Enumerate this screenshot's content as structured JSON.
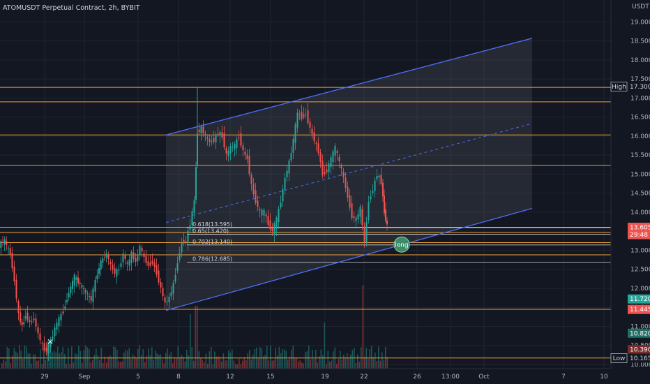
{
  "title": "ATOMUSDT Perpetual Contract, 2h, BYBIT",
  "colors": {
    "background": "#131722",
    "grid": "#1f2430",
    "orange": "#f0a234",
    "blue": "#4f6ef7",
    "candle_up": "#26a69a",
    "candle_down": "#ef5350",
    "fib_line": "#ffffff",
    "long_marker": "#3d8b6a"
  },
  "chart_data": {
    "type": "candlestick",
    "title": "ATOMUSDT Perpetual Contract, 2h, BYBIT",
    "yunit": "USDT",
    "ylim": [
      10.0,
      19.3
    ],
    "y_ticks": [
      "19.000",
      "18.500",
      "18.000",
      "17.500",
      "17.000",
      "16.500",
      "16.000",
      "15.500",
      "15.000",
      "14.500",
      "14.000",
      "13.500",
      "13.000",
      "12.500",
      "12.000",
      "11.500",
      "11.000",
      "10.500",
      "10.000"
    ],
    "x_ticks": [
      "29",
      "Sep",
      "5",
      "8",
      "12",
      "15",
      "19",
      "22",
      "26",
      "13:00",
      "Oct",
      "7",
      "10"
    ],
    "price_path": [
      [
        0,
        13.15
      ],
      [
        8,
        13.25
      ],
      [
        16,
        12.9
      ],
      [
        22,
        12.2
      ],
      [
        28,
        11.3
      ],
      [
        33,
        11.0
      ],
      [
        38,
        11.3
      ],
      [
        44,
        11.1
      ],
      [
        50,
        11.2
      ],
      [
        56,
        10.8
      ],
      [
        62,
        10.5
      ],
      [
        68,
        10.35
      ],
      [
        74,
        10.6
      ],
      [
        80,
        10.95
      ],
      [
        86,
        11.2
      ],
      [
        92,
        11.4
      ],
      [
        100,
        11.9
      ],
      [
        108,
        12.3
      ],
      [
        116,
        12.1
      ],
      [
        124,
        11.9
      ],
      [
        132,
        11.7
      ],
      [
        138,
        12.2
      ],
      [
        146,
        12.7
      ],
      [
        154,
        12.9
      ],
      [
        160,
        12.6
      ],
      [
        166,
        12.4
      ],
      [
        172,
        12.5
      ],
      [
        178,
        12.9
      ],
      [
        184,
        12.6
      ],
      [
        190,
        12.9
      ],
      [
        196,
        12.7
      ],
      [
        202,
        13.1
      ],
      [
        208,
        12.8
      ],
      [
        214,
        12.6
      ],
      [
        220,
        12.7
      ],
      [
        226,
        12.4
      ],
      [
        232,
        12.0
      ],
      [
        238,
        11.6
      ],
      [
        244,
        11.75
      ],
      [
        250,
        12.1
      ],
      [
        256,
        12.7
      ],
      [
        262,
        13.2
      ],
      [
        268,
        13.25
      ],
      [
        274,
        13.7
      ],
      [
        280,
        14.3
      ],
      [
        284,
        16.1
      ],
      [
        290,
        16.2
      ],
      [
        296,
        16.0
      ],
      [
        302,
        15.85
      ],
      [
        308,
        15.9
      ],
      [
        314,
        16.1
      ],
      [
        320,
        16.0
      ],
      [
        326,
        15.5
      ],
      [
        332,
        15.7
      ],
      [
        338,
        15.75
      ],
      [
        344,
        16.0
      ],
      [
        350,
        15.6
      ],
      [
        356,
        15.4
      ],
      [
        362,
        14.7
      ],
      [
        368,
        14.3
      ],
      [
        374,
        14.0
      ],
      [
        380,
        14.0
      ],
      [
        386,
        13.7
      ],
      [
        392,
        13.5
      ],
      [
        398,
        13.8
      ],
      [
        404,
        14.3
      ],
      [
        410,
        14.9
      ],
      [
        416,
        15.3
      ],
      [
        422,
        15.9
      ],
      [
        428,
        16.6
      ],
      [
        434,
        16.5
      ],
      [
        440,
        16.6
      ],
      [
        446,
        16.2
      ],
      [
        452,
        15.9
      ],
      [
        458,
        15.6
      ],
      [
        464,
        15.0
      ],
      [
        470,
        15.1
      ],
      [
        476,
        15.4
      ],
      [
        482,
        15.7
      ],
      [
        488,
        15.3
      ],
      [
        494,
        14.9
      ],
      [
        500,
        14.4
      ],
      [
        506,
        13.9
      ],
      [
        512,
        13.8
      ],
      [
        518,
        14.1
      ],
      [
        524,
        13.2
      ],
      [
        530,
        14.3
      ],
      [
        536,
        14.6
      ],
      [
        542,
        15.0
      ],
      [
        548,
        14.8
      ],
      [
        552,
        14.0
      ],
      [
        556,
        13.65
      ]
    ],
    "levels": [
      {
        "kind": "hline",
        "color": "orange",
        "price": 17.28
      },
      {
        "kind": "hline",
        "color": "orange",
        "price": 16.9
      },
      {
        "kind": "hline",
        "color": "orange",
        "price": 16.03
      },
      {
        "kind": "hline",
        "color": "orange",
        "price": 15.23
      },
      {
        "kind": "hline",
        "color": "orange",
        "price": 13.605
      },
      {
        "kind": "hline",
        "color": "orange",
        "price": 13.46
      },
      {
        "kind": "hline",
        "color": "orange",
        "price": 13.2
      },
      {
        "kind": "hline",
        "color": "orange",
        "price": 12.88
      },
      {
        "kind": "hline",
        "color": "orange",
        "price": 11.45
      },
      {
        "kind": "hline",
        "color": "orange",
        "price": 10.17
      }
    ],
    "fib_levels": [
      {
        "label": "0.618(13.595)",
        "price": 13.595
      },
      {
        "label": "0.65(13.420)",
        "price": 13.42
      },
      {
        "label": "0.702(13.140)",
        "price": 13.14
      },
      {
        "label": "0.786(12.685)",
        "price": 12.685
      }
    ],
    "channel": {
      "upper_start": [
        17.0
      ],
      "upper_start_x": 238,
      "upper_end_x": 763,
      "upper_start_price": 16.03,
      "upper_end_price": 18.57,
      "lower_start_price": 11.42,
      "lower_end_price": 14.1,
      "mid_start_price": 13.73,
      "mid_end_price": 16.33
    },
    "price_labels": [
      {
        "text": "High",
        "value": "17.300",
        "price": 17.3,
        "style": "high"
      },
      {
        "text": "",
        "value": "13.605",
        "price": 13.605,
        "style": "current"
      },
      {
        "text": "",
        "value": "29:48",
        "price": 13.41,
        "style": "countdown"
      },
      {
        "text": "",
        "value": "11.720",
        "price": 11.72,
        "style": "green"
      },
      {
        "text": "",
        "value": "11.445",
        "price": 11.445,
        "style": "red"
      },
      {
        "text": "",
        "value": "10.820",
        "price": 10.82,
        "style": "darkgreen"
      },
      {
        "text": "",
        "value": "10.390",
        "price": 10.39,
        "style": "darkred"
      },
      {
        "text": "Low",
        "value": "10.165",
        "price": 10.165,
        "style": "low"
      }
    ],
    "long_marker": {
      "label": "long",
      "price": 13.15
    }
  }
}
